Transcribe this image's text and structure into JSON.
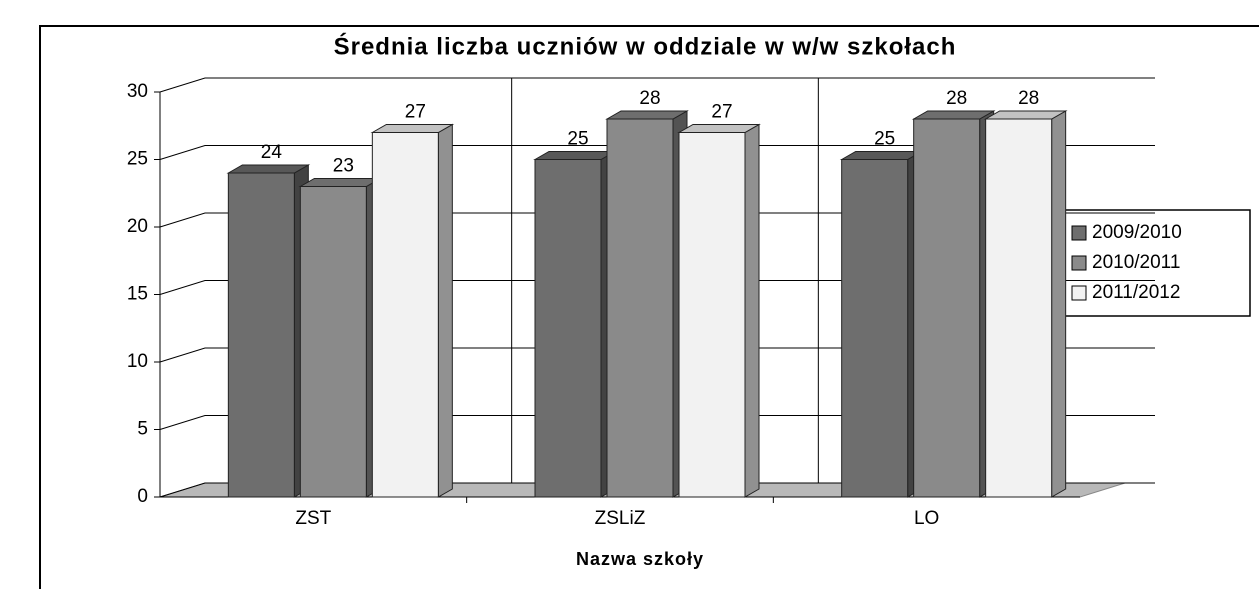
{
  "chart_data": {
    "type": "bar",
    "title": "Średnia liczba uczniów w oddziale w w/w szkołach",
    "x_label": "Nazwa szkoły",
    "categories": [
      "ZST",
      "ZSLiZ",
      "LO"
    ],
    "series": [
      {
        "name": "2009/2010",
        "color": "#6e6e6e",
        "values": [
          24,
          25,
          25
        ]
      },
      {
        "name": "2010/2011",
        "color": "#8a8a8a",
        "values": [
          23,
          28,
          28
        ]
      },
      {
        "name": "2011/2012",
        "color": "#f2f2f2",
        "values": [
          27,
          27,
          28
        ]
      }
    ],
    "ylim": [
      0,
      30
    ],
    "yticks": [
      0,
      5,
      10,
      15,
      20,
      25,
      30
    ],
    "grid": true,
    "legend": "right",
    "data_labels": true
  }
}
